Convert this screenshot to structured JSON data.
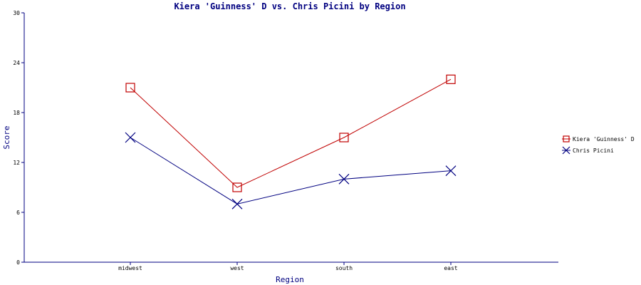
{
  "chart_data": {
    "type": "line",
    "title": "Kiera 'Guinness' D vs. Chris Picini by Region",
    "xlabel": "Region",
    "ylabel": "Score",
    "categories": [
      "midwest",
      "west",
      "south",
      "east"
    ],
    "ylim": [
      0,
      30
    ],
    "yticks": [
      "0",
      "6",
      "12",
      "18",
      "24",
      "30"
    ],
    "grid": false,
    "legend_position": "right",
    "series": [
      {
        "name": "Kiera 'Guinness' D",
        "values": [
          21,
          9,
          15,
          22
        ],
        "color": "#c00000",
        "marker": "square"
      },
      {
        "name": "Chris Picini",
        "values": [
          15,
          7,
          10,
          11
        ],
        "color": "#000080",
        "marker": "x"
      }
    ]
  }
}
